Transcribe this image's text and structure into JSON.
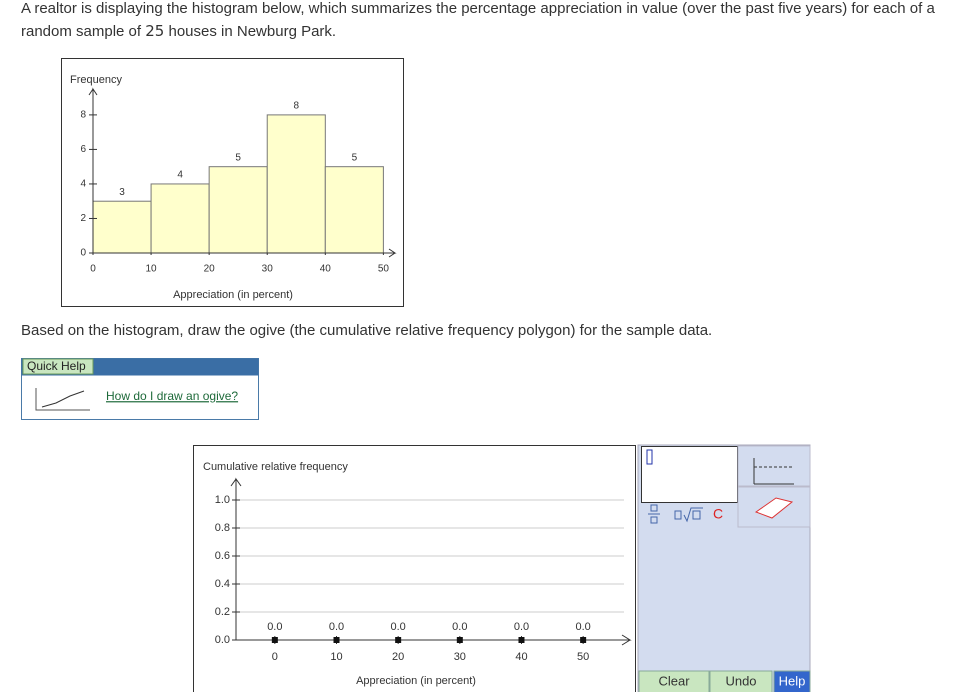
{
  "question": {
    "before": "A realtor is displaying the histogram below, which summarizes the percentage appreciation in value (over the past five years) for each of a random sample of",
    "sample_size": "25",
    "after": "houses in Newburg Park."
  },
  "histogram": {
    "type": "histogram",
    "y_label": "Frequency",
    "x_label": "Appreciation (in percent)",
    "bins": [
      0,
      10,
      20,
      30,
      40,
      50
    ],
    "values": [
      3,
      4,
      5,
      8,
      5
    ],
    "color": "#ffffcc",
    "xlim": [
      0,
      52
    ],
    "ylim": [
      0,
      9.5
    ],
    "xticks": [
      0,
      10,
      20,
      30,
      40,
      50
    ],
    "yticks": [
      0,
      2,
      4,
      6,
      8
    ]
  },
  "instruction": "Based on the histogram, draw the ogive (the cumulative relative frequency polygon) for the sample data.",
  "quick_help": {
    "title": "Quick Help",
    "link": "How do I draw an ogive?"
  },
  "ogive": {
    "type": "line",
    "y_label": "Cumulative relative frequency",
    "x_label": "Appreciation (in percent)",
    "x": [
      0,
      10,
      20,
      30,
      40,
      50
    ],
    "values": [
      0,
      0,
      0,
      0,
      0,
      0
    ],
    "value_labels": [
      "0.0",
      "0.0",
      "0.0",
      "0.0",
      "0.0",
      "0.0"
    ],
    "xlim": [
      -6.3,
      57.6
    ],
    "ylim": [
      0,
      1.15
    ],
    "xticks": [
      0,
      10,
      20,
      30,
      40,
      50
    ],
    "yticks": [
      {
        "value": 0,
        "label": "0.0"
      },
      0.2,
      0.4,
      0.6,
      0.8,
      {
        "value": 1,
        "label": "1.0"
      }
    ],
    "grid": true
  },
  "tools": {
    "clear_symbol": "C",
    "buttons": [
      "Clear",
      "Undo",
      "Help"
    ]
  }
}
